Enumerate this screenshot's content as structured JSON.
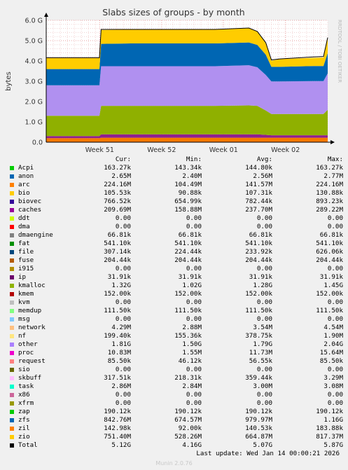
{
  "chart_data": {
    "type": "area",
    "title": "Slabs sizes of groups - by month",
    "ylabel": "bytes",
    "xlabel": "",
    "side_text": "RRDTOOL / TOBI OETIKER",
    "y_ticks": [
      "0.0",
      "1.0 G",
      "2.0 G",
      "3.0 G",
      "4.0 G",
      "5.0 G",
      "6.0 G"
    ],
    "ylim": [
      0,
      6.0
    ],
    "x_tick_labels": [
      "Week 51",
      "Week 52",
      "Week 01",
      "Week 02"
    ],
    "x_tick_positions": [
      0.19,
      0.41,
      0.63,
      0.85
    ],
    "grid": true,
    "x": [
      0,
      0.12,
      0.189,
      0.195,
      0.3,
      0.45,
      0.6,
      0.72,
      0.75,
      0.78,
      0.8,
      0.83,
      0.95,
      0.985,
      1.0
    ],
    "series": [
      {
        "name": "arc",
        "color": "#f57900",
        "values": [
          0.2,
          0.2,
          0.2,
          0.22,
          0.22,
          0.22,
          0.22,
          0.22,
          0.22,
          0.22,
          0.22,
          0.22,
          0.22,
          0.22,
          0.22
        ]
      },
      {
        "name": "proc",
        "color": "#8f1f8f",
        "values": [
          0.1,
          0.1,
          0.1,
          0.17,
          0.17,
          0.17,
          0.17,
          0.17,
          0.17,
          0.14,
          0.12,
          0.12,
          0.12,
          0.12,
          0.12
        ]
      },
      {
        "name": "kmalloc",
        "color": "#8fb000",
        "values": [
          1.0,
          1.0,
          1.0,
          1.4,
          1.4,
          1.4,
          1.4,
          1.42,
          1.4,
          1.2,
          1.05,
          1.05,
          1.05,
          1.05,
          1.25
        ]
      },
      {
        "name": "other",
        "color": "#b090f0",
        "values": [
          1.5,
          1.5,
          1.5,
          1.95,
          1.95,
          1.95,
          1.95,
          1.98,
          1.9,
          1.75,
          1.6,
          1.6,
          1.62,
          1.62,
          1.8
        ]
      },
      {
        "name": "zfs",
        "color": "#0066b3",
        "values": [
          0.8,
          0.8,
          0.8,
          1.1,
          1.12,
          1.12,
          1.12,
          1.12,
          1.1,
          1.0,
          0.72,
          0.72,
          0.74,
          0.74,
          1.0
        ]
      },
      {
        "name": "zio",
        "color": "#ffcc00",
        "values": [
          0.55,
          0.55,
          0.55,
          0.68,
          0.68,
          0.68,
          0.68,
          0.7,
          0.65,
          0.55,
          0.3,
          0.38,
          0.4,
          0.42,
          0.72
        ]
      }
    ],
    "total": {
      "name": "Total",
      "color": "#000000",
      "values": [
        4.16,
        4.16,
        4.16,
        5.55,
        5.55,
        5.55,
        5.55,
        5.62,
        5.45,
        4.9,
        4.05,
        4.1,
        4.2,
        4.22,
        5.15
      ]
    }
  },
  "legend": {
    "headers": {
      "cur": "Cur:",
      "min": "Min:",
      "avg": "Avg:",
      "max": "Max:"
    },
    "rows": [
      {
        "name": "Acpi",
        "color": "#00cc00",
        "cur": "163.27k",
        "min": "143.34k",
        "avg": "144.80k",
        "max": "163.27k"
      },
      {
        "name": "anon",
        "color": "#0066b3",
        "cur": "2.65M",
        "min": "2.40M",
        "avg": "2.56M",
        "max": "2.77M"
      },
      {
        "name": "arc",
        "color": "#ff8000",
        "cur": "224.16M",
        "min": "104.49M",
        "avg": "141.57M",
        "max": "224.16M"
      },
      {
        "name": "bio",
        "color": "#ffcc00",
        "cur": "105.53k",
        "min": "90.88k",
        "avg": "107.31k",
        "max": "130.88k"
      },
      {
        "name": "biovec",
        "color": "#330099",
        "cur": "766.52k",
        "min": "654.99k",
        "avg": "782.44k",
        "max": "893.23k"
      },
      {
        "name": "caches",
        "color": "#990099",
        "cur": "209.69M",
        "min": "158.88M",
        "avg": "237.70M",
        "max": "289.22M"
      },
      {
        "name": "ddt",
        "color": "#ccff00",
        "cur": "0.00",
        "min": "0.00",
        "avg": "0.00",
        "max": "0.00"
      },
      {
        "name": "dma",
        "color": "#ff0000",
        "cur": "0.00",
        "min": "0.00",
        "avg": "0.00",
        "max": "0.00"
      },
      {
        "name": "dmaengine",
        "color": "#808080",
        "cur": "66.81k",
        "min": "66.81k",
        "avg": "66.81k",
        "max": "66.81k"
      },
      {
        "name": "fat",
        "color": "#008f00",
        "cur": "541.10k",
        "min": "541.10k",
        "avg": "541.10k",
        "max": "541.10k"
      },
      {
        "name": "file",
        "color": "#00487d",
        "cur": "307.14k",
        "min": "224.44k",
        "avg": "233.92k",
        "max": "626.06k"
      },
      {
        "name": "fuse",
        "color": "#b35a00",
        "cur": "204.44k",
        "min": "204.44k",
        "avg": "204.44k",
        "max": "204.44k"
      },
      {
        "name": "i915",
        "color": "#b38f00",
        "cur": "0.00",
        "min": "0.00",
        "avg": "0.00",
        "max": "0.00"
      },
      {
        "name": "ip",
        "color": "#6b006b",
        "cur": "31.91k",
        "min": "31.91k",
        "avg": "31.91k",
        "max": "31.91k"
      },
      {
        "name": "kmalloc",
        "color": "#8fb300",
        "cur": "1.32G",
        "min": "1.02G",
        "avg": "1.28G",
        "max": "1.45G"
      },
      {
        "name": "kmem",
        "color": "#b30000",
        "cur": "152.00k",
        "min": "152.00k",
        "avg": "152.00k",
        "max": "152.00k"
      },
      {
        "name": "kvm",
        "color": "#bebebe",
        "cur": "0.00",
        "min": "0.00",
        "avg": "0.00",
        "max": "0.00"
      },
      {
        "name": "memdup",
        "color": "#80ff80",
        "cur": "111.50k",
        "min": "111.50k",
        "avg": "111.50k",
        "max": "111.50k"
      },
      {
        "name": "msg",
        "color": "#80c9ff",
        "cur": "0.00",
        "min": "0.00",
        "avg": "0.00",
        "max": "0.00"
      },
      {
        "name": "network",
        "color": "#ffc080",
        "cur": "4.29M",
        "min": "2.88M",
        "avg": "3.54M",
        "max": "4.54M"
      },
      {
        "name": "nf",
        "color": "#ffe680",
        "cur": "199.40k",
        "min": "155.36k",
        "avg": "378.75k",
        "max": "1.90M"
      },
      {
        "name": "other",
        "color": "#aa80ff",
        "cur": "1.81G",
        "min": "1.50G",
        "avg": "1.79G",
        "max": "2.04G"
      },
      {
        "name": "proc",
        "color": "#ee00cc",
        "cur": "10.83M",
        "min": "1.55M",
        "avg": "11.73M",
        "max": "15.64M"
      },
      {
        "name": "request",
        "color": "#ff8080",
        "cur": "85.50k",
        "min": "46.12k",
        "avg": "56.55k",
        "max": "85.50k"
      },
      {
        "name": "sio",
        "color": "#666600",
        "cur": "0.00",
        "min": "0.00",
        "avg": "0.00",
        "max": "0.00"
      },
      {
        "name": "skbuff",
        "color": "#ffbfff",
        "cur": "317.51k",
        "min": "218.31k",
        "avg": "359.44k",
        "max": "3.29M"
      },
      {
        "name": "task",
        "color": "#00ffcc",
        "cur": "2.86M",
        "min": "2.84M",
        "avg": "3.00M",
        "max": "3.08M"
      },
      {
        "name": "x86",
        "color": "#cc6699",
        "cur": "0.00",
        "min": "0.00",
        "avg": "0.00",
        "max": "0.00"
      },
      {
        "name": "xfrm",
        "color": "#999900",
        "cur": "0.00",
        "min": "0.00",
        "avg": "0.00",
        "max": "0.00"
      },
      {
        "name": "zap",
        "color": "#00cc00",
        "cur": "190.12k",
        "min": "190.12k",
        "avg": "190.12k",
        "max": "190.12k"
      },
      {
        "name": "zfs",
        "color": "#0066b3",
        "cur": "842.76M",
        "min": "674.57M",
        "avg": "979.97M",
        "max": "1.16G"
      },
      {
        "name": "zil",
        "color": "#ff8000",
        "cur": "142.98k",
        "min": "92.00k",
        "avg": "140.53k",
        "max": "183.88k"
      },
      {
        "name": "zio",
        "color": "#ffcc00",
        "cur": "751.40M",
        "min": "528.26M",
        "avg": "664.87M",
        "max": "817.37M"
      },
      {
        "name": "Total",
        "color": "#000000",
        "cur": "5.12G",
        "min": "4.16G",
        "avg": "5.07G",
        "max": "5.87G"
      }
    ]
  },
  "footer": {
    "last_update": "Last update: Wed Jan 14 00:00:21 2026",
    "munin_version": "Munin 2.0.76"
  }
}
